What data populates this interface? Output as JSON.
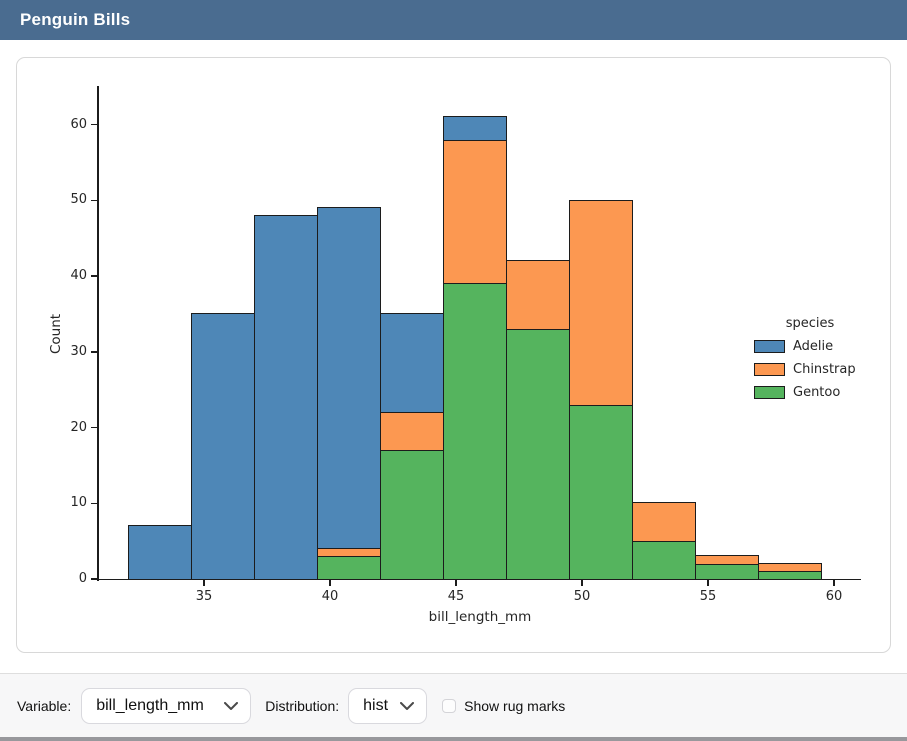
{
  "header": {
    "title": "Penguin Bills",
    "bg_color": "#4a6c90",
    "text_color": "#ffffff"
  },
  "chart_data": {
    "type": "bar",
    "subtype": "stacked_histogram",
    "title": "",
    "xlabel": "bill_length_mm",
    "ylabel": "Count",
    "x_ticks": [
      35,
      40,
      45,
      50,
      55,
      60
    ],
    "y_ticks": [
      0,
      10,
      20,
      30,
      40,
      50,
      60
    ],
    "xlim": [
      30.83,
      61.07
    ],
    "ylim": [
      0,
      65.1
    ],
    "grid": false,
    "bin_width": 2.5,
    "bin_edges": [
      32,
      34.5,
      37,
      39.5,
      42,
      44.5,
      47,
      49.5,
      52,
      54.5,
      57,
      59.5
    ],
    "series": [
      {
        "name": "Gentoo",
        "color": "#55b45e",
        "values": [
          0,
          0,
          0,
          3,
          17,
          39,
          33,
          23,
          5,
          2,
          1
        ]
      },
      {
        "name": "Chinstrap",
        "color": "#fc9851",
        "values": [
          0,
          0,
          0,
          1,
          5,
          19,
          9,
          27,
          5,
          1,
          1
        ]
      },
      {
        "name": "Adelie",
        "color": "#4e87b7",
        "values": [
          7,
          35,
          48,
          45,
          13,
          3,
          0,
          0,
          0,
          0,
          0
        ]
      }
    ],
    "bin_totals": [
      7,
      35,
      48,
      49,
      35,
      61,
      42,
      50,
      10,
      3,
      2
    ],
    "legend": {
      "title": "species",
      "position": "center right",
      "entries": [
        {
          "label": "Adelie",
          "color": "#4e87b7"
        },
        {
          "label": "Chinstrap",
          "color": "#fc9851"
        },
        {
          "label": "Gentoo",
          "color": "#55b45e"
        }
      ]
    },
    "edge_color": "#1c1c1c"
  },
  "footer": {
    "variable_label": "Variable:",
    "variable_value": "bill_length_mm",
    "distribution_label": "Distribution:",
    "distribution_value": "hist",
    "rug_label": "Show rug marks",
    "rug_checked": false
  }
}
